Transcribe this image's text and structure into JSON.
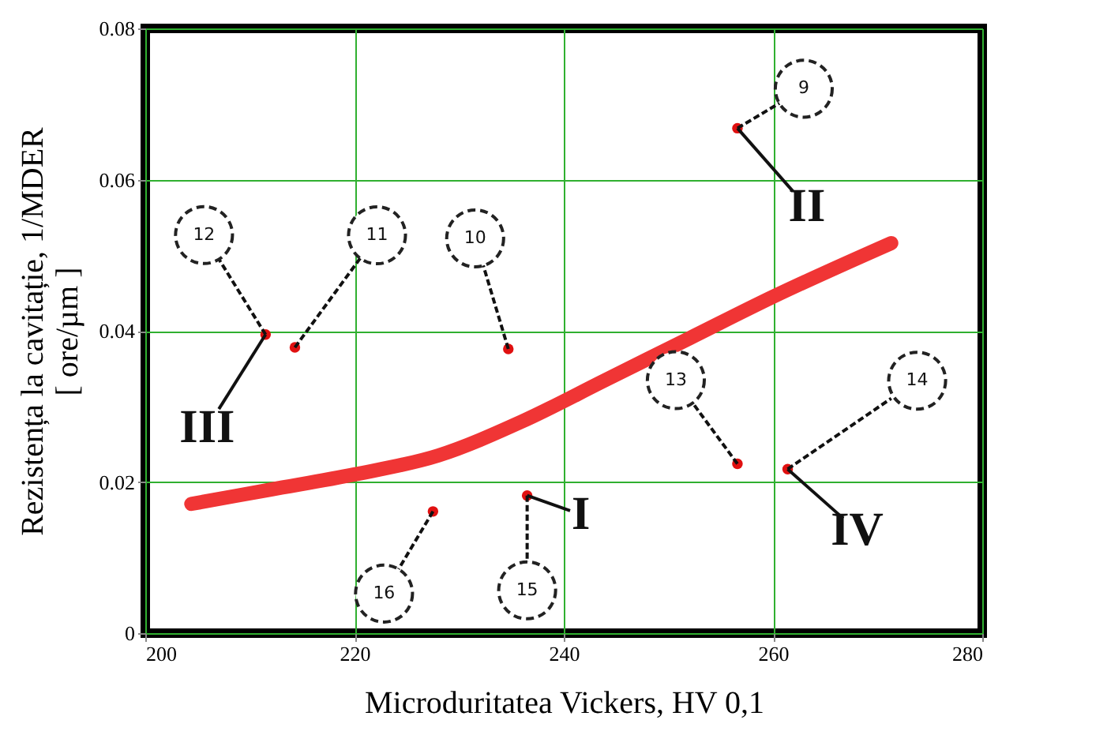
{
  "chart_data": {
    "type": "scatter",
    "xlabel": "Microduritatea Vickers, HV 0,1",
    "ylabel": "Rezistența la cavitație, 1/MDER [ ore/µm ]",
    "xlim": [
      200,
      280
    ],
    "xticks": [
      200,
      220,
      240,
      260,
      280
    ],
    "ylim": [
      0,
      0.08
    ],
    "yticks": [
      0,
      0.02,
      0.04,
      0.06,
      0.08
    ],
    "grid": true,
    "marker": "circle",
    "series": [
      {
        "color": "#e01010",
        "x": [
          256.6,
          234.7,
          214.3,
          211.5,
          256.6,
          261.4,
          236.5,
          227.5
        ],
        "values": [
          0.0668,
          0.0376,
          0.0378,
          0.0395,
          0.0224,
          0.0217,
          0.0182,
          0.0161
        ]
      },
      {
        "type": "line",
        "color": "#f03535",
        "marker": "none",
        "x": [
          204.4,
          212,
          220,
          228,
          236,
          244,
          252,
          260,
          271.3
        ],
        "values": [
          0.0171,
          0.019,
          0.021,
          0.0235,
          0.028,
          0.0335,
          0.039,
          0.0445,
          0.0516
        ]
      }
    ],
    "annotations": [
      {
        "text": "9",
        "x": 256.6,
        "y": 0.0668
      },
      {
        "text": "10",
        "x": 234.7,
        "y": 0.0376
      },
      {
        "text": "11",
        "x": 214.3,
        "y": 0.0378
      },
      {
        "text": "12",
        "x": 211.5,
        "y": 0.0395
      },
      {
        "text": "13",
        "x": 256.6,
        "y": 0.0224
      },
      {
        "text": "14",
        "x": 261.4,
        "y": 0.0217
      },
      {
        "text": "15",
        "x": 236.5,
        "y": 0.0182
      },
      {
        "text": "16",
        "x": 227.5,
        "y": 0.0161
      },
      {
        "text": "I",
        "x": 236.5,
        "y": 0.0182
      },
      {
        "text": "II",
        "x": 256.6,
        "y": 0.0668
      },
      {
        "text": "III",
        "x": 211.5,
        "y": 0.0395
      },
      {
        "text": "IV",
        "x": 261.4,
        "y": 0.0217
      }
    ]
  }
}
